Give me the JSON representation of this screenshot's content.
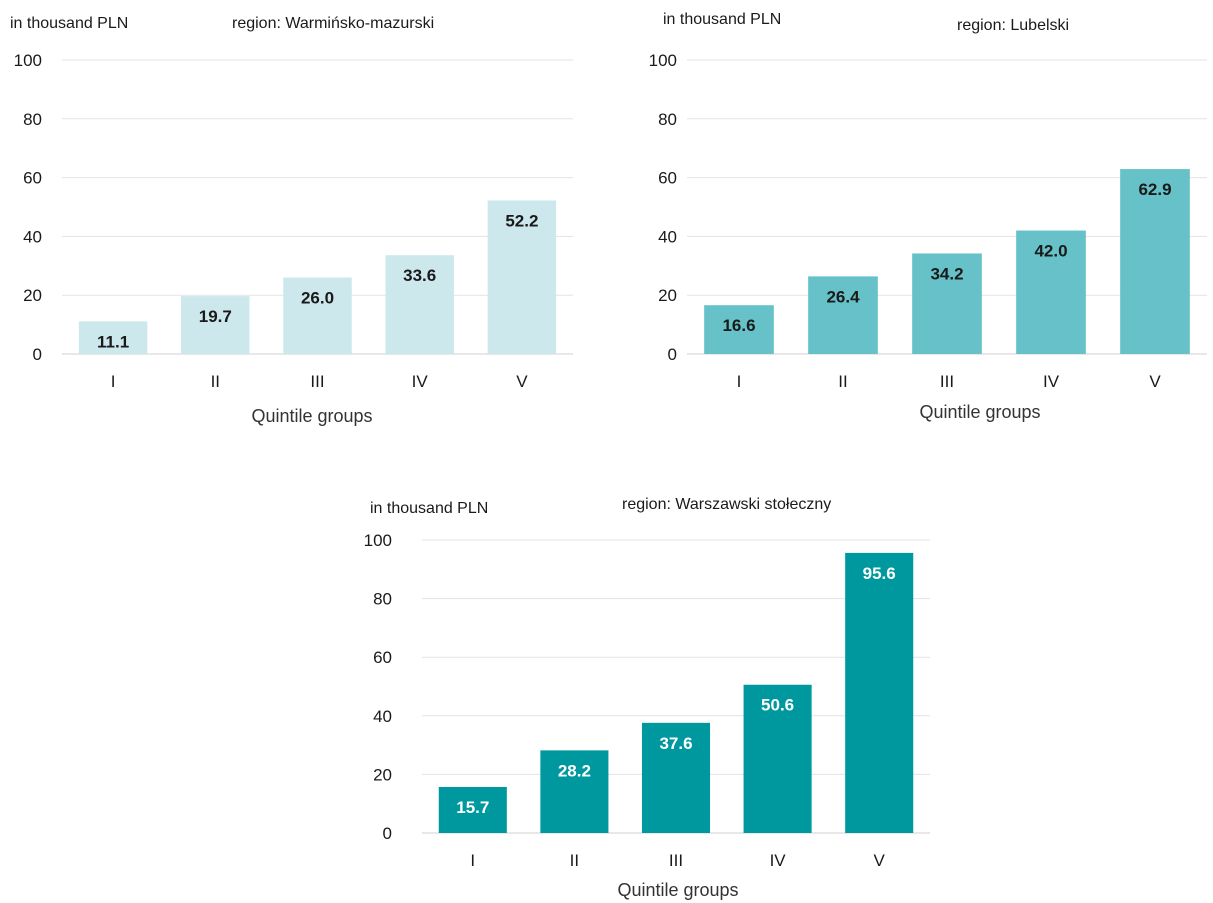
{
  "chart_data": [
    {
      "type": "bar",
      "unit_label": "in thousand PLN",
      "region_label": "region: Warmińsko-mazurski",
      "categories": [
        "I",
        "II",
        "III",
        "IV",
        "V"
      ],
      "values": [
        11.1,
        19.7,
        26.0,
        33.6,
        52.2
      ],
      "value_labels": [
        "11.1",
        "19.7",
        "26.0",
        "33.6",
        "52.2"
      ],
      "xlabel": "Quintile groups",
      "ylim": [
        0,
        100
      ],
      "yticks": [
        0,
        20,
        40,
        60,
        80,
        100
      ],
      "grid": true,
      "bar_color": "#cde8ec",
      "label_color": "#1a1a1a"
    },
    {
      "type": "bar",
      "unit_label": "in thousand PLN",
      "region_label": "region: Lubelski",
      "categories": [
        "I",
        "II",
        "III",
        "IV",
        "V"
      ],
      "values": [
        16.6,
        26.4,
        34.2,
        42.0,
        62.9
      ],
      "value_labels": [
        "16.6",
        "26.4",
        "34.2",
        "42.0",
        "62.9"
      ],
      "xlabel": "Quintile groups",
      "ylim": [
        0,
        100
      ],
      "yticks": [
        0,
        20,
        40,
        60,
        80,
        100
      ],
      "grid": true,
      "bar_color": "#66c2c8",
      "label_color": "#1a1a1a"
    },
    {
      "type": "bar",
      "unit_label": "in thousand PLN",
      "region_label": "region: Warszawski stołeczny",
      "categories": [
        "I",
        "II",
        "III",
        "IV",
        "V"
      ],
      "values": [
        15.7,
        28.2,
        37.6,
        50.6,
        95.6
      ],
      "value_labels": [
        "15.7",
        "28.2",
        "37.6",
        "50.6",
        "95.6"
      ],
      "xlabel": "Quintile groups",
      "ylim": [
        0,
        100
      ],
      "yticks": [
        0,
        20,
        40,
        60,
        80,
        100
      ],
      "grid": true,
      "bar_color": "#00989f",
      "label_color": "#ffffff"
    }
  ]
}
